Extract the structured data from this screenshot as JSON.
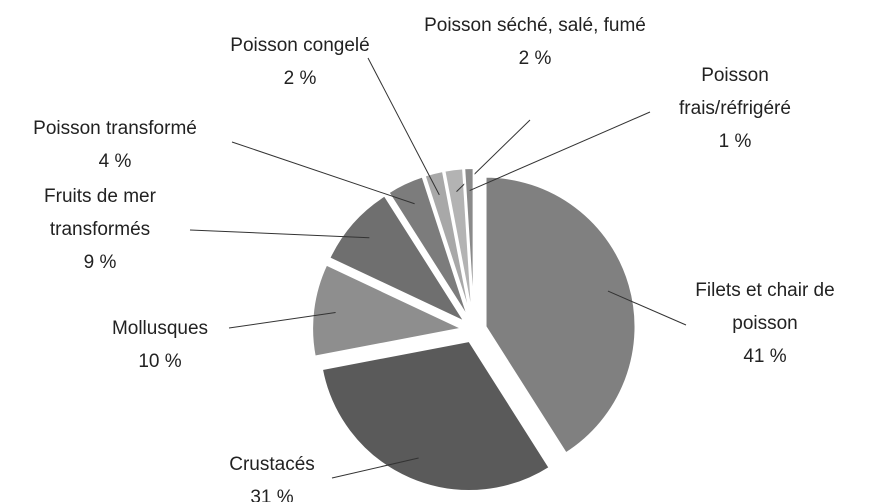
{
  "chart_data": {
    "type": "pie",
    "categories": [
      "Filets et chair de poisson",
      "Crustacés",
      "Mollusques",
      "Fruits de mer transformés",
      "Poisson transformé",
      "Poisson congelé",
      "Poisson séché, salé, fumé",
      "Poisson frais/réfrigéré"
    ],
    "values": [
      41,
      31,
      10,
      9,
      4,
      2,
      2,
      1
    ],
    "value_labels": [
      "41 %",
      "31 %",
      "10 %",
      "9 %",
      "4 %",
      "2 %",
      "2 %",
      "1 %"
    ],
    "colors": [
      "#808080",
      "#5a5a5a",
      "#8e8e8e",
      "#6f6f6f",
      "#7c7c7c",
      "#a8a8a8",
      "#b3b3b3",
      "#8a8a8a"
    ]
  }
}
